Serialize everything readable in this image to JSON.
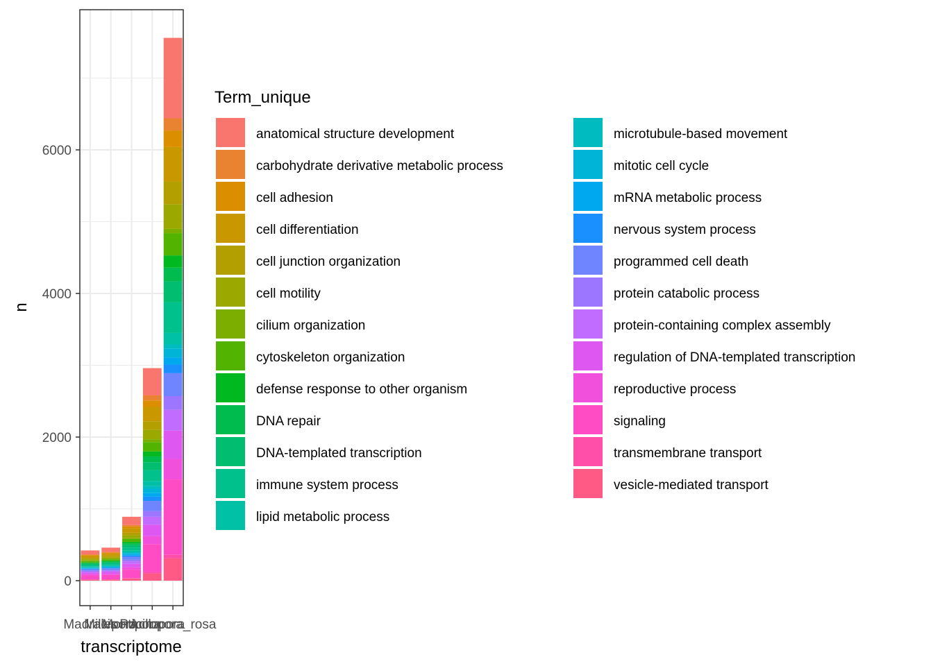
{
  "chart_data": {
    "type": "stacked_bar",
    "x_label": "transcriptome",
    "y_label": "n",
    "legend_title": "Term_unique",
    "categories": [
      "Madracis",
      "Millepora",
      "Montipora",
      "Pocillopora",
      "Acropora_rosa"
    ],
    "ylim": [
      -348,
      7952
    ],
    "yticks": [
      0,
      2000,
      4000,
      6000
    ],
    "grid": true,
    "series": [
      {
        "name": "anatomical structure development",
        "color": "#F8766D",
        "values": [
          55,
          60,
          115,
          380,
          1120
        ]
      },
      {
        "name": "carbohydrate derivative metabolic process",
        "color": "#EA8331",
        "values": [
          10,
          11,
          20,
          70,
          170
        ]
      },
      {
        "name": "cell adhesion",
        "color": "#DB8E00",
        "values": [
          13,
          14,
          27,
          90,
          230
        ]
      },
      {
        "name": "cell differentiation",
        "color": "#C99800",
        "values": [
          28,
          31,
          60,
          200,
          480
        ]
      },
      {
        "name": "cell junction organization",
        "color": "#B3A000",
        "values": [
          17,
          19,
          36,
          120,
          320
        ]
      },
      {
        "name": "cell motility",
        "color": "#9AA800",
        "values": [
          19,
          21,
          40,
          130,
          340
        ]
      },
      {
        "name": "cilium organization",
        "color": "#7CAE00",
        "values": [
          6,
          6,
          12,
          40,
          60
        ]
      },
      {
        "name": "cytoskeleton organization",
        "color": "#53B400",
        "values": [
          19,
          21,
          40,
          130,
          310
        ]
      },
      {
        "name": "defense response to other organism",
        "color": "#00B81F",
        "values": [
          10,
          11,
          21,
          70,
          170
        ]
      },
      {
        "name": "DNA repair",
        "color": "#00BB4E",
        "values": [
          11,
          12,
          24,
          80,
          190
        ]
      },
      {
        "name": "DNA-templated transcription",
        "color": "#00BD6F",
        "values": [
          16,
          17,
          33,
          110,
          290
        ]
      },
      {
        "name": "immune system process",
        "color": "#00C08B",
        "values": [
          21,
          23,
          45,
          150,
          430
        ]
      },
      {
        "name": "lipid metabolic process",
        "color": "#00C0A6",
        "values": [
          10,
          11,
          21,
          70,
          160
        ]
      },
      {
        "name": "microtubule-based movement",
        "color": "#00BCC0",
        "values": [
          6,
          6,
          12,
          40,
          60
        ]
      },
      {
        "name": "mitotic cell cycle",
        "color": "#00B4D8",
        "values": [
          8,
          9,
          18,
          60,
          120
        ]
      },
      {
        "name": "mRNA metabolic process",
        "color": "#00A9EF",
        "values": [
          7,
          8,
          15,
          50,
          100
        ]
      },
      {
        "name": "nervous system process",
        "color": "#1A90FF",
        "values": [
          8,
          9,
          18,
          60,
          120
        ]
      },
      {
        "name": "programmed cell death",
        "color": "#6F84FF",
        "values": [
          20,
          22,
          42,
          140,
          320
        ]
      },
      {
        "name": "protein catabolic process",
        "color": "#9C76FF",
        "values": [
          11,
          12,
          24,
          80,
          190
        ]
      },
      {
        "name": "protein-containing complex assembly",
        "color": "#C16BFF",
        "values": [
          16,
          17,
          33,
          110,
          290
        ]
      },
      {
        "name": "regulation of DNA-templated transcription",
        "color": "#DE57F0",
        "values": [
          22,
          25,
          48,
          160,
          390
        ]
      },
      {
        "name": "reproductive process",
        "color": "#F050DC",
        "values": [
          16,
          17,
          33,
          110,
          290
        ]
      },
      {
        "name": "signaling",
        "color": "#FF4CC4",
        "values": [
          55,
          60,
          117,
          390,
          1050
        ]
      },
      {
        "name": "transmembrane transport",
        "color": "#FF4FA8",
        "values": [
          3,
          3,
          6,
          20,
          50
        ]
      },
      {
        "name": "vesicle-mediated transport",
        "color": "#FF5A85",
        "values": [
          14,
          15,
          30,
          100,
          310
        ]
      }
    ]
  }
}
